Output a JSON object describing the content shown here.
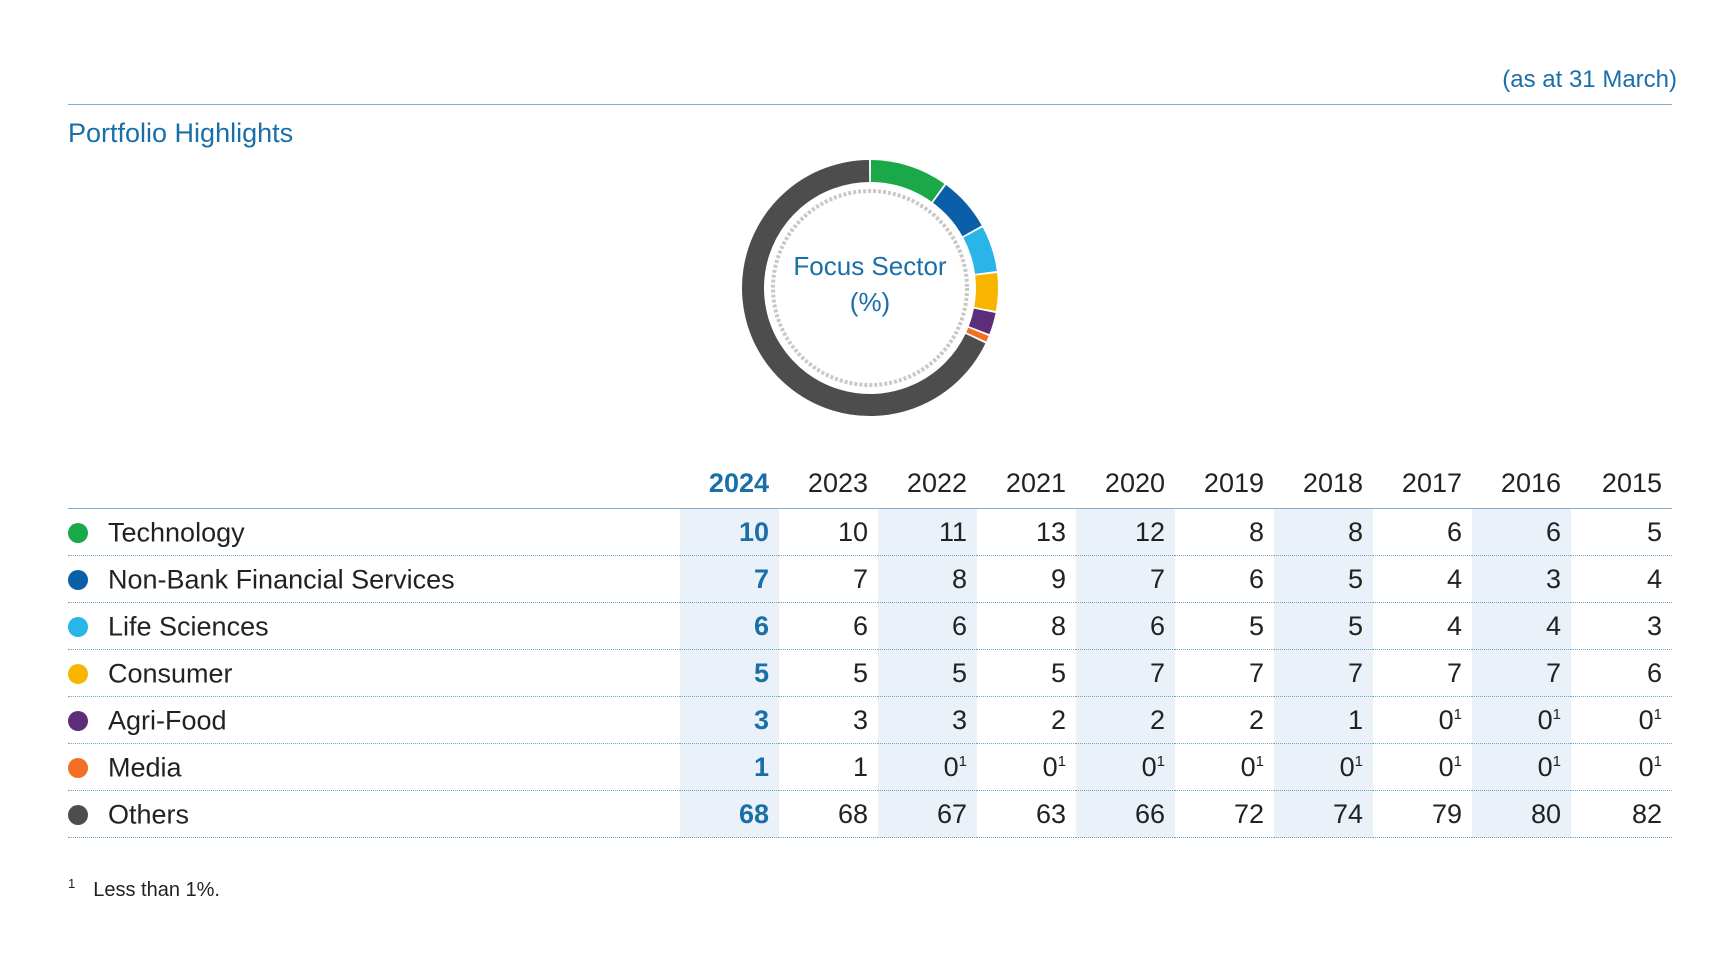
{
  "header": {
    "as_at": "(as at 31 March)",
    "title": "Portfolio Highlights"
  },
  "donut": {
    "center_line1": "Focus Sector",
    "center_line2": "(%)"
  },
  "chart_data": {
    "type": "table",
    "years": [
      "2024",
      "2023",
      "2022",
      "2021",
      "2020",
      "2019",
      "2018",
      "2017",
      "2016",
      "2015"
    ],
    "highlight_year": "2024",
    "rows": [
      {
        "sector": "Technology",
        "color": "#1aa848",
        "values": [
          "10",
          "10",
          "11",
          "13",
          "12",
          "8",
          "8",
          "6",
          "6",
          "5"
        ]
      },
      {
        "sector": "Non-Bank Financial Services",
        "color": "#0a5fa8",
        "values": [
          "7",
          "7",
          "8",
          "9",
          "7",
          "6",
          "5",
          "4",
          "3",
          "4"
        ]
      },
      {
        "sector": "Life Sciences",
        "color": "#29b5e8",
        "values": [
          "6",
          "6",
          "6",
          "8",
          "6",
          "5",
          "5",
          "4",
          "4",
          "3"
        ]
      },
      {
        "sector": "Consumer",
        "color": "#f7b500",
        "values": [
          "5",
          "5",
          "5",
          "5",
          "7",
          "7",
          "7",
          "7",
          "7",
          "6"
        ]
      },
      {
        "sector": "Agri-Food",
        "color": "#5e2d79",
        "values": [
          "3",
          "3",
          "3",
          "2",
          "2",
          "2",
          "1",
          "0¹",
          "0¹",
          "0¹"
        ]
      },
      {
        "sector": "Media",
        "color": "#f36f21",
        "values": [
          "1",
          "1",
          "0¹",
          "0¹",
          "0¹",
          "0¹",
          "0¹",
          "0¹",
          "0¹",
          "0¹"
        ]
      },
      {
        "sector": "Others",
        "color": "#4d4d4d",
        "values": [
          "68",
          "68",
          "67",
          "63",
          "66",
          "72",
          "74",
          "79",
          "80",
          "82"
        ]
      }
    ],
    "donut_year": "2024",
    "donut_values": [
      10,
      7,
      6,
      5,
      3,
      1,
      68
    ]
  },
  "footnote": {
    "mark": "1",
    "text": "Less than 1%."
  }
}
